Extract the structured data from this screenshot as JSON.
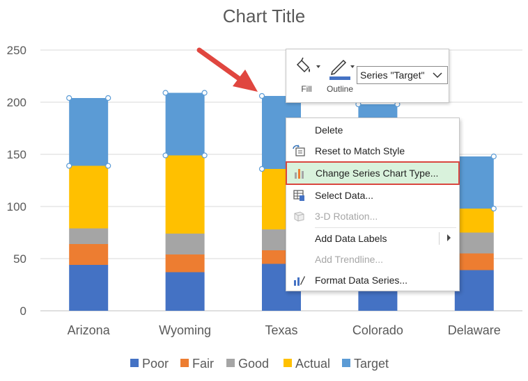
{
  "chart_data": {
    "type": "bar",
    "stacked": true,
    "title": "Chart Title",
    "categories": [
      "Arizona",
      "Wyoming",
      "Texas",
      "Colorado",
      "Delaware"
    ],
    "yticks": [
      "0",
      "50",
      "100",
      "150",
      "200",
      "250"
    ],
    "ylim": [
      0,
      250
    ],
    "grid": true,
    "legend_position": "bottom",
    "series": [
      {
        "name": "Poor",
        "color": "#4472C4",
        "values": [
          44,
          37,
          45,
          40,
          39
        ]
      },
      {
        "name": "Fair",
        "color": "#ED7D31",
        "values": [
          20,
          17,
          13,
          15,
          16
        ]
      },
      {
        "name": "Good",
        "color": "#A5A5A5",
        "values": [
          15,
          20,
          20,
          20,
          20
        ]
      },
      {
        "name": "Actual",
        "color": "#FFC000",
        "values": [
          60,
          75,
          58,
          65,
          23
        ]
      },
      {
        "name": "Target",
        "color": "#5B9BD5",
        "values": [
          65,
          60,
          70,
          58,
          50
        ]
      }
    ],
    "selected_series": "Target"
  },
  "mini_toolbar": {
    "fill_label": "Fill",
    "outline_label": "Outline",
    "series_selector_value": "Series \"Target\""
  },
  "context_menu": {
    "items": [
      {
        "label": "Delete",
        "icon": "none",
        "enabled": true
      },
      {
        "label": "Reset to Match Style",
        "icon": "reset-style-icon",
        "enabled": true
      },
      {
        "label": "Change Series Chart Type...",
        "icon": "chart-type-icon",
        "enabled": true,
        "highlighted": true
      },
      {
        "label": "Select Data...",
        "icon": "select-data-icon",
        "enabled": true
      },
      {
        "label": "3-D Rotation...",
        "icon": "cube-icon",
        "enabled": false
      },
      {
        "label": "Add Data Labels",
        "icon": "none",
        "enabled": true,
        "submenu": true
      },
      {
        "label": "Add Trendline...",
        "icon": "none",
        "enabled": false
      },
      {
        "label": "Format Data Series...",
        "icon": "format-series-icon",
        "enabled": true
      }
    ]
  },
  "colors": {
    "highlight_outline": "#D9453E",
    "highlight_fill": "#D9F2DC",
    "arrow": "#E0463F",
    "selection_handle": "#5B9BD5"
  }
}
